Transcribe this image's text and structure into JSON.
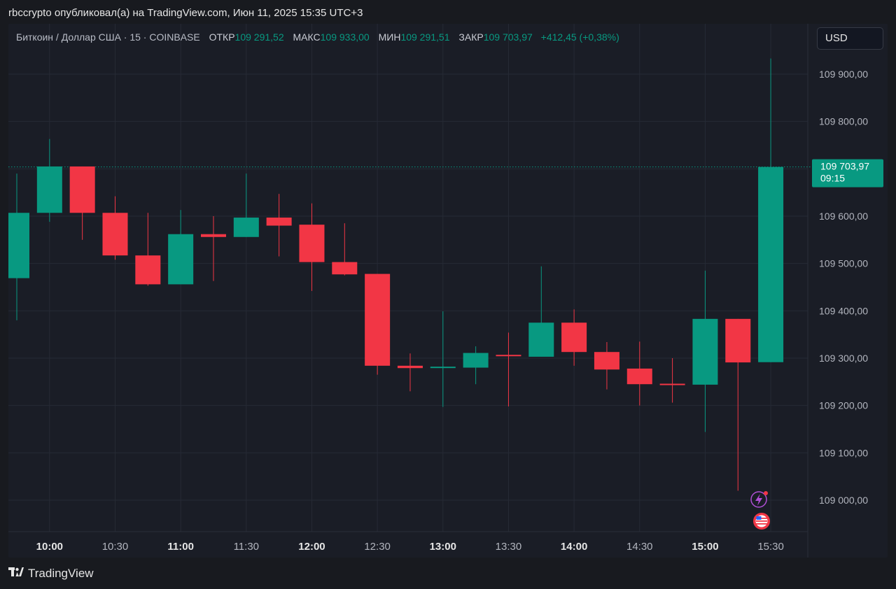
{
  "header": {
    "publisher_line": "rbccrypto опубликовал(а) на TradingView.com, Июн 11, 2025 15:35 UTC+3"
  },
  "legend": {
    "symbol": "Биткоин / Доллар США · 15 · COINBASE",
    "open_label": "ОТКР",
    "open_value": "109 291,52",
    "high_label": "МАКС",
    "high_value": "109 933,00",
    "low_label": "МИН",
    "low_value": "109 291,51",
    "close_label": "ЗАКР",
    "close_value": "109 703,97",
    "change": "+412,45 (+0,38%)"
  },
  "currency_button": "USD",
  "price_badge": {
    "price": "109 703,97",
    "countdown": "09:15"
  },
  "footer": {
    "brand": "TradingView",
    "logo_icon": "tradingview-logo-icon"
  },
  "icons": {
    "lightning": "lightning-icon",
    "flag": "us-flag-icon"
  },
  "colors": {
    "up": "#089981",
    "down": "#f23645",
    "grid": "#262a35",
    "text": "#b2b5be",
    "background": "#1a1d26"
  },
  "chart_data": {
    "type": "candlestick",
    "interval": "15",
    "x_labels": [
      {
        "label": "10:00",
        "bold": true
      },
      {
        "label": "10:30",
        "bold": false
      },
      {
        "label": "11:00",
        "bold": true
      },
      {
        "label": "11:30",
        "bold": false
      },
      {
        "label": "12:00",
        "bold": true
      },
      {
        "label": "12:30",
        "bold": false
      },
      {
        "label": "13:00",
        "bold": true
      },
      {
        "label": "13:30",
        "bold": false
      },
      {
        "label": "14:00",
        "bold": true
      },
      {
        "label": "14:30",
        "bold": false
      },
      {
        "label": "15:00",
        "bold": true
      },
      {
        "label": "15:30",
        "bold": false
      }
    ],
    "y_ticks": [
      {
        "value": 109000,
        "label": "109 000,00"
      },
      {
        "value": 109100,
        "label": "109 100,00"
      },
      {
        "value": 109200,
        "label": "109 200,00"
      },
      {
        "value": 109300,
        "label": "109 300,00"
      },
      {
        "value": 109400,
        "label": "109 400,00"
      },
      {
        "value": 109500,
        "label": "109 500,00"
      },
      {
        "value": 109600,
        "label": "109 600,00"
      },
      {
        "value": 109700,
        "label": "109 700,00"
      },
      {
        "value": 109800,
        "label": "109 800,00"
      },
      {
        "value": 109900,
        "label": "109 900,00"
      }
    ],
    "ylim": [
      108940,
      109980
    ],
    "candles": [
      {
        "time": "09:45",
        "open": 109469,
        "high": 109690,
        "low": 109380,
        "close": 109607
      },
      {
        "time": "10:00",
        "open": 109607,
        "high": 109763,
        "low": 109588,
        "close": 109705
      },
      {
        "time": "10:15",
        "open": 109705,
        "high": 109705,
        "low": 109550,
        "close": 109607
      },
      {
        "time": "10:30",
        "open": 109607,
        "high": 109642,
        "low": 109508,
        "close": 109517
      },
      {
        "time": "10:45",
        "open": 109517,
        "high": 109607,
        "low": 109453,
        "close": 109456
      },
      {
        "time": "11:00",
        "open": 109456,
        "high": 109613,
        "low": 109456,
        "close": 109562
      },
      {
        "time": "11:15",
        "open": 109562,
        "high": 109600,
        "low": 109463,
        "close": 109556
      },
      {
        "time": "11:30",
        "open": 109556,
        "high": 109690,
        "low": 109556,
        "close": 109597
      },
      {
        "time": "11:45",
        "open": 109597,
        "high": 109647,
        "low": 109515,
        "close": 109580
      },
      {
        "time": "12:00",
        "open": 109582,
        "high": 109627,
        "low": 109442,
        "close": 109503
      },
      {
        "time": "12:15",
        "open": 109503,
        "high": 109585,
        "low": 109475,
        "close": 109477
      },
      {
        "time": "12:30",
        "open": 109478,
        "high": 109478,
        "low": 109265,
        "close": 109284
      },
      {
        "time": "12:45",
        "open": 109284,
        "high": 109310,
        "low": 109230,
        "close": 109279
      },
      {
        "time": "13:00",
        "open": 109280,
        "high": 109399,
        "low": 109197,
        "close": 109282
      },
      {
        "time": "13:15",
        "open": 109280,
        "high": 109325,
        "low": 109245,
        "close": 109311
      },
      {
        "time": "13:30",
        "open": 109307,
        "high": 109354,
        "low": 109198,
        "close": 109305
      },
      {
        "time": "13:45",
        "open": 109303,
        "high": 109494,
        "low": 109303,
        "close": 109375
      },
      {
        "time": "14:00",
        "open": 109375,
        "high": 109403,
        "low": 109284,
        "close": 109313
      },
      {
        "time": "14:15",
        "open": 109313,
        "high": 109334,
        "low": 109234,
        "close": 109276
      },
      {
        "time": "14:30",
        "open": 109278,
        "high": 109335,
        "low": 109200,
        "close": 109245
      },
      {
        "time": "14:45",
        "open": 109246,
        "high": 109300,
        "low": 109206,
        "close": 109245
      },
      {
        "time": "15:00",
        "open": 109244,
        "high": 109485,
        "low": 109144,
        "close": 109383
      },
      {
        "time": "15:15",
        "open": 109383,
        "high": 109383,
        "low": 109020,
        "close": 109291
      },
      {
        "time": "15:30",
        "open": 109291.52,
        "high": 109933.0,
        "low": 109291.51,
        "close": 109703.97
      }
    ],
    "last_price": 109703.97
  }
}
